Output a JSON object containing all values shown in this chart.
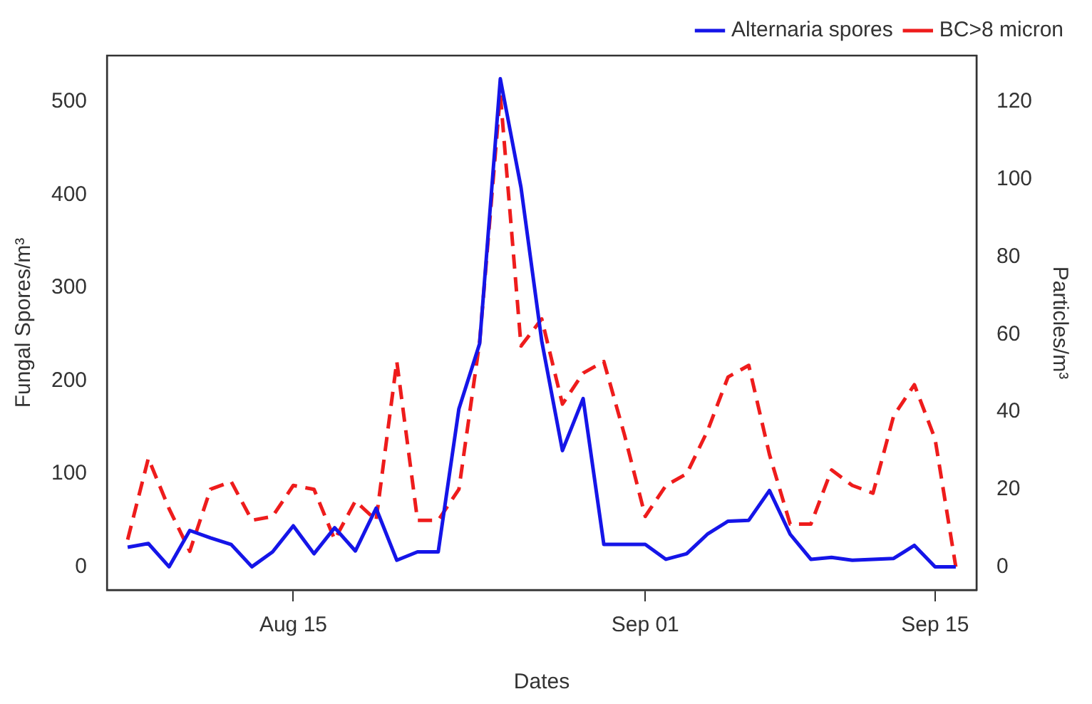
{
  "chart_data": {
    "type": "line",
    "xlabel": "Dates",
    "ylabel": "Fungal Spores/m³",
    "y2label": "Particles/m³",
    "x": [
      "--08-07",
      "--08-08",
      "--08-09",
      "--08-10",
      "--08-11",
      "--08-12",
      "--08-13",
      "--08-14",
      "--08-15",
      "--08-16",
      "--08-17",
      "--08-18",
      "--08-19",
      "--08-20",
      "--08-21",
      "--08-22",
      "--08-23",
      "--08-24",
      "--08-25",
      "--08-26",
      "--08-27",
      "--08-28",
      "--08-29",
      "--08-30",
      "--08-31",
      "--09-01",
      "--09-02",
      "--09-03",
      "--09-04",
      "--09-05",
      "--09-06",
      "--09-07",
      "--09-08",
      "--09-09",
      "--09-10",
      "--09-11",
      "--09-12",
      "--09-13",
      "--09-14",
      "--09-15",
      "--09-16"
    ],
    "series": [
      {
        "name": "Alternaria spores",
        "color": "#1515e8",
        "line_style": "solid",
        "values": [
          21,
          25,
          0,
          39,
          31,
          24,
          0,
          16,
          44,
          14,
          42,
          17,
          63,
          7,
          16,
          16,
          170,
          240,
          525,
          408,
          243,
          125,
          181,
          24,
          24,
          24,
          8,
          14,
          35,
          49,
          50,
          82,
          35,
          8,
          10,
          7,
          8,
          9,
          23,
          0,
          0
        ]
      },
      {
        "name": "BC>8 micron",
        "color": "#ee1c1c",
        "line_style": "dashed",
        "axis": "y2",
        "values": [
          7,
          28,
          15,
          4,
          20,
          22,
          12,
          13,
          21,
          20,
          7,
          17,
          12,
          53,
          12,
          12,
          20,
          58,
          122,
          57,
          64,
          42,
          50,
          53,
          34,
          13,
          21,
          24,
          35,
          49,
          52,
          29,
          11,
          11,
          25,
          21,
          19,
          39,
          47,
          33,
          0
        ]
      }
    ],
    "xlim": [
      "--08-06",
      "--09-17"
    ],
    "xticks": [
      {
        "value": "--08-15",
        "label": "Aug 15"
      },
      {
        "value": "--09-01",
        "label": "Sep 01"
      },
      {
        "value": "--09-15",
        "label": "Sep 15"
      }
    ],
    "ylim": [
      -25,
      550
    ],
    "yticks": [
      0,
      100,
      200,
      300,
      400,
      500
    ],
    "y2lim": [
      -6,
      132
    ],
    "y2ticks": [
      0,
      20,
      40,
      60,
      80,
      100,
      120
    ],
    "grid": false,
    "legend": "top right",
    "marker": "none"
  }
}
